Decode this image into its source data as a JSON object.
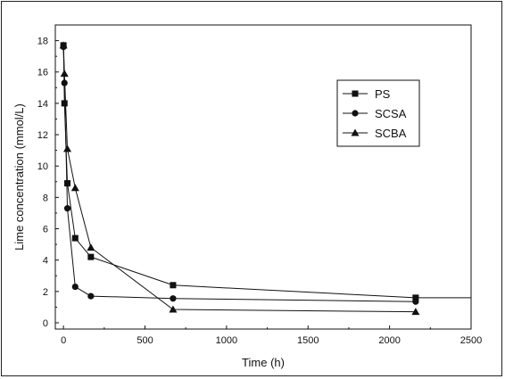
{
  "chart_data": {
    "type": "line",
    "xlabel": "Time (h)",
    "ylabel": "Lime concentration (mmol/L)",
    "xlim": [
      -50,
      2500
    ],
    "ylim": [
      -0.4,
      19
    ],
    "xticks": [
      0,
      500,
      1000,
      1500,
      2000,
      2500
    ],
    "yticks": [
      0,
      2,
      4,
      6,
      8,
      10,
      12,
      14,
      16,
      18
    ],
    "grid": false,
    "legend_position": "top-right",
    "series": [
      {
        "name": "PS",
        "marker": "square",
        "points": [
          [
            0,
            17.7
          ],
          [
            6,
            14.0
          ],
          [
            24,
            8.9
          ],
          [
            72,
            5.4
          ],
          [
            168,
            4.2
          ],
          [
            672,
            2.4
          ],
          [
            2160,
            1.6
          ]
        ]
      },
      {
        "name": "SCSA",
        "marker": "circle",
        "points": [
          [
            0,
            17.6
          ],
          [
            6,
            15.3
          ],
          [
            24,
            7.3
          ],
          [
            72,
            2.3
          ],
          [
            168,
            1.7
          ],
          [
            672,
            1.55
          ],
          [
            2160,
            1.35
          ]
        ]
      },
      {
        "name": "SCBA",
        "marker": "triangle",
        "points": [
          [
            0,
            17.7
          ],
          [
            6,
            15.9
          ],
          [
            24,
            11.1
          ],
          [
            72,
            8.6
          ],
          [
            168,
            4.8
          ],
          [
            672,
            0.85
          ],
          [
            2160,
            0.7
          ]
        ]
      }
    ],
    "reference_line_y": 1.6
  }
}
